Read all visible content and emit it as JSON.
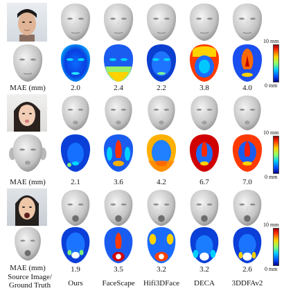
{
  "rows": [
    {
      "id": "subject-1",
      "mae_label": "MAE (mm)",
      "mae_values": [
        "2.0",
        "2.4",
        "2.2",
        "3.8",
        "4.0"
      ],
      "expression": "neutral"
    },
    {
      "id": "subject-2",
      "mae_label": "MAE (mm)",
      "mae_values": [
        "2.1",
        "3.6",
        "4.2",
        "6.7",
        "7.0"
      ],
      "expression": "pucker"
    },
    {
      "id": "subject-3",
      "mae_label": "MAE (mm)",
      "mae_values": [
        "1.9",
        "3.5",
        "3.2",
        "3.2",
        "2.6"
      ],
      "expression": "open-mouth"
    }
  ],
  "columns": [
    "Ours",
    "FaceScape",
    "Hifi3DFace",
    "DECA",
    "3DDFAv2"
  ],
  "corner_label": "Source Image/ Ground Truth",
  "colorbar": {
    "max_label": "10 mm",
    "min_label": "0 mm",
    "colors": [
      "#a00000",
      "#ff2a00",
      "#ffd200",
      "#8cff6a",
      "#00c8ff",
      "#0050ff",
      "#00008f"
    ]
  }
}
